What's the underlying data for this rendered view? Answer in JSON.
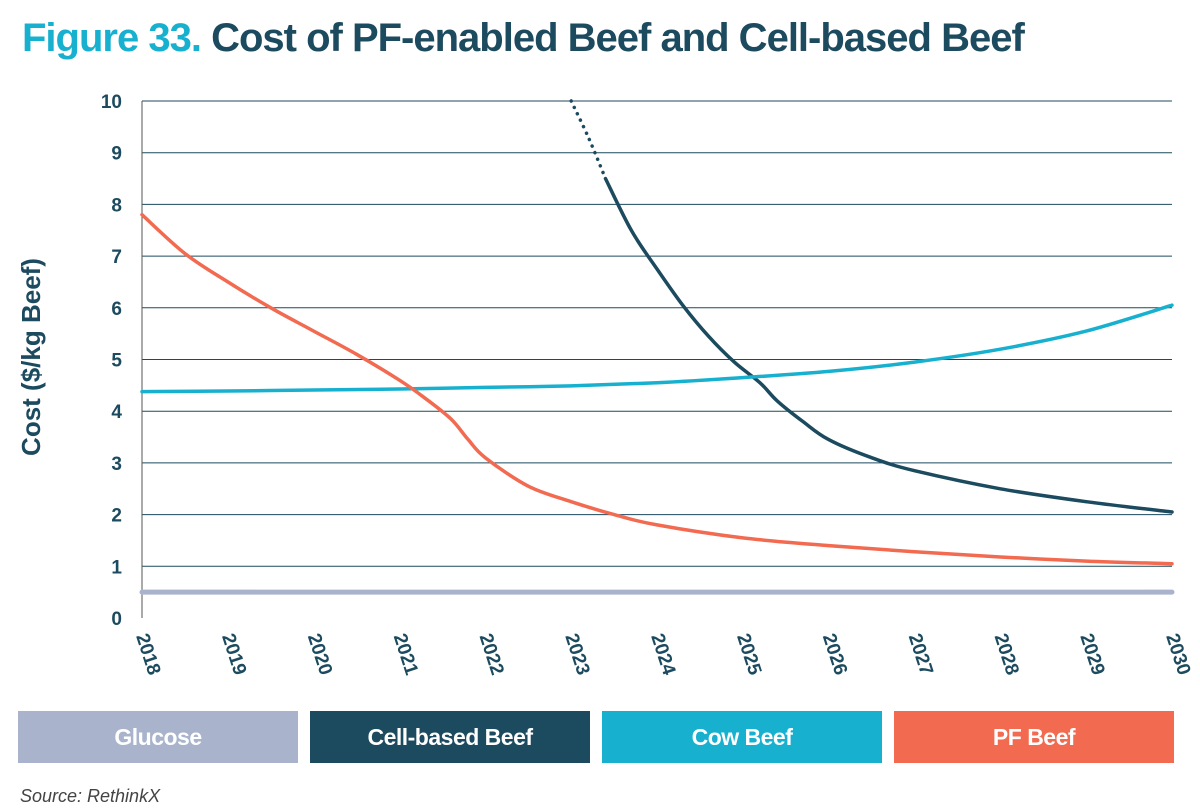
{
  "figure": {
    "number_label": "Figure 33.",
    "title": "Cost of PF-enabled Beef and Cell-based Beef"
  },
  "chart_data": {
    "type": "line",
    "ylabel": "Cost ($/kg Beef)",
    "xlabel": "",
    "xlim": [
      2018,
      2030
    ],
    "ylim": [
      0,
      10
    ],
    "x_ticks": [
      "2018",
      "2019",
      "2020",
      "2021",
      "2022",
      "2023",
      "2024",
      "2025",
      "2026",
      "2027",
      "2028",
      "2029",
      "2030"
    ],
    "y_ticks": [
      "0",
      "1",
      "2",
      "3",
      "4",
      "5",
      "6",
      "7",
      "8",
      "9",
      "10"
    ],
    "grid": "horizontal",
    "legend_position": "bottom",
    "series": [
      {
        "name": "Glucose",
        "color": "#a9b4cc",
        "points": [
          [
            2018,
            0.5
          ],
          [
            2030,
            0.5
          ]
        ]
      },
      {
        "name": "Cell-based Beef",
        "color": "#1c4a5e",
        "projected_dotted_points": [
          [
            2023.0,
            10.0
          ],
          [
            2023.2,
            9.3
          ],
          [
            2023.4,
            8.5
          ]
        ],
        "points": [
          [
            2023.4,
            8.5
          ],
          [
            2023.7,
            7.5
          ],
          [
            2024.0,
            6.75
          ],
          [
            2024.3,
            6.05
          ],
          [
            2024.6,
            5.45
          ],
          [
            2024.9,
            4.95
          ],
          [
            2025.2,
            4.55
          ],
          [
            2025.4,
            4.2
          ],
          [
            2025.7,
            3.8
          ],
          [
            2026.0,
            3.45
          ],
          [
            2026.5,
            3.1
          ],
          [
            2027.0,
            2.85
          ],
          [
            2028.0,
            2.5
          ],
          [
            2029.0,
            2.25
          ],
          [
            2030.0,
            2.05
          ]
        ]
      },
      {
        "name": "Cow Beef",
        "color": "#17b1cf",
        "points": [
          [
            2018,
            4.38
          ],
          [
            2019,
            4.39
          ],
          [
            2020,
            4.41
          ],
          [
            2021,
            4.43
          ],
          [
            2022,
            4.46
          ],
          [
            2023,
            4.49
          ],
          [
            2024,
            4.55
          ],
          [
            2025,
            4.65
          ],
          [
            2026,
            4.77
          ],
          [
            2027,
            4.95
          ],
          [
            2028,
            5.2
          ],
          [
            2029,
            5.55
          ],
          [
            2030,
            6.05
          ]
        ]
      },
      {
        "name": "PF Beef",
        "color": "#f26a50",
        "points": [
          [
            2018.0,
            7.8
          ],
          [
            2018.5,
            7.05
          ],
          [
            2019.0,
            6.5
          ],
          [
            2019.5,
            6.0
          ],
          [
            2020.0,
            5.55
          ],
          [
            2020.5,
            5.1
          ],
          [
            2021.0,
            4.6
          ],
          [
            2021.3,
            4.25
          ],
          [
            2021.6,
            3.85
          ],
          [
            2021.8,
            3.45
          ],
          [
            2022.0,
            3.1
          ],
          [
            2022.5,
            2.55
          ],
          [
            2023.0,
            2.25
          ],
          [
            2023.5,
            2.0
          ],
          [
            2024.0,
            1.8
          ],
          [
            2025.0,
            1.55
          ],
          [
            2026.0,
            1.4
          ],
          [
            2027.0,
            1.28
          ],
          [
            2028.0,
            1.18
          ],
          [
            2029.0,
            1.1
          ],
          [
            2030.0,
            1.05
          ]
        ]
      }
    ]
  },
  "legend": {
    "items": [
      {
        "label": "Glucose",
        "color": "#a9b4cc"
      },
      {
        "label": "Cell-based Beef",
        "color": "#1c4a5e"
      },
      {
        "label": "Cow Beef",
        "color": "#17b1cf"
      },
      {
        "label": "PF Beef",
        "color": "#f26a50"
      }
    ]
  },
  "source": "Source: RethinkX"
}
